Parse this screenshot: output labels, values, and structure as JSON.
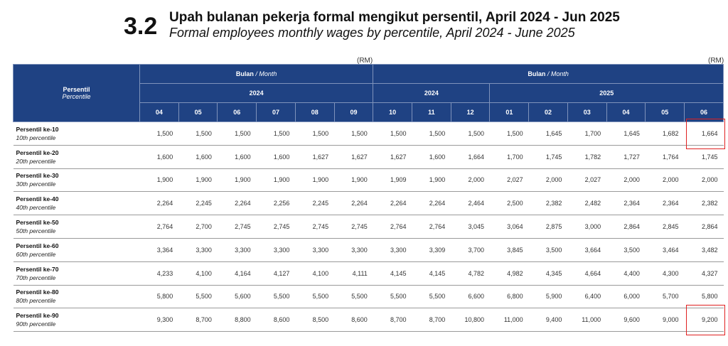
{
  "title": {
    "number": "3.2",
    "ms": "Upah bulanan pekerja formal mengikut persentil, April 2024 - Jun 2025",
    "en": "Formal employees monthly wages by percentile, April 2024 - June 2025"
  },
  "unit": "(RM)",
  "header": {
    "row_label_ms": "Persentil",
    "row_label_en": "Percentile",
    "group_ms": "Bulan",
    "group_sep": " / ",
    "group_en": "Month",
    "left_year": "2024",
    "right_years": [
      "2024",
      "2025"
    ],
    "left_months": [
      "04",
      "05",
      "06",
      "07",
      "08",
      "09"
    ],
    "right_months": [
      "10",
      "11",
      "12",
      "01",
      "02",
      "03",
      "04",
      "05",
      "06"
    ]
  },
  "highlight_color": "#e02020",
  "rows": [
    {
      "ms": "Persentil ke-10",
      "en": "10th percentile",
      "values": [
        "1,500",
        "1,500",
        "1,500",
        "1,500",
        "1,500",
        "1,500",
        "1,500",
        "1,500",
        "1,500",
        "1,500",
        "1,645",
        "1,700",
        "1,645",
        "1,682",
        "1,664"
      ],
      "highlight_last": true
    },
    {
      "ms": "Persentil ke-20",
      "en": "20th percentile",
      "values": [
        "1,600",
        "1,600",
        "1,600",
        "1,600",
        "1,627",
        "1,627",
        "1,627",
        "1,600",
        "1,664",
        "1,700",
        "1,745",
        "1,782",
        "1,727",
        "1,764",
        "1,745"
      ]
    },
    {
      "ms": "Persentil ke-30",
      "en": "30th percentile",
      "values": [
        "1,900",
        "1,900",
        "1,900",
        "1,900",
        "1,900",
        "1,900",
        "1,909",
        "1,900",
        "2,000",
        "2,027",
        "2,000",
        "2,027",
        "2,000",
        "2,000",
        "2,000"
      ]
    },
    {
      "ms": "Persentil ke-40",
      "en": "40th percentile",
      "values": [
        "2,264",
        "2,245",
        "2,264",
        "2,256",
        "2,245",
        "2,264",
        "2,264",
        "2,264",
        "2,464",
        "2,500",
        "2,382",
        "2,482",
        "2,364",
        "2,364",
        "2,382"
      ]
    },
    {
      "ms": "Persentil ke-50",
      "en": "50th percentile",
      "values": [
        "2,764",
        "2,700",
        "2,745",
        "2,745",
        "2,745",
        "2,745",
        "2,764",
        "2,764",
        "3,045",
        "3,064",
        "2,875",
        "3,000",
        "2,864",
        "2,845",
        "2,864"
      ]
    },
    {
      "ms": "Persentil ke-60",
      "en": "60th percentile",
      "values": [
        "3,364",
        "3,300",
        "3,300",
        "3,300",
        "3,300",
        "3,300",
        "3,300",
        "3,309",
        "3,700",
        "3,845",
        "3,500",
        "3,664",
        "3,500",
        "3,464",
        "3,482"
      ]
    },
    {
      "ms": "Persentil ke-70",
      "en": "70th percentile",
      "values": [
        "4,233",
        "4,100",
        "4,164",
        "4,127",
        "4,100",
        "4,111",
        "4,145",
        "4,145",
        "4,782",
        "4,982",
        "4,345",
        "4,664",
        "4,400",
        "4,300",
        "4,327"
      ]
    },
    {
      "ms": "Persentil ke-80",
      "en": "80th percentile",
      "values": [
        "5,800",
        "5,500",
        "5,600",
        "5,500",
        "5,500",
        "5,500",
        "5,500",
        "5,500",
        "6,600",
        "6,800",
        "5,900",
        "6,400",
        "6,000",
        "5,700",
        "5,800"
      ]
    },
    {
      "ms": "Persentil ke-90",
      "en": "90th percentile",
      "values": [
        "9,300",
        "8,700",
        "8,800",
        "8,600",
        "8,500",
        "8,600",
        "8,700",
        "8,700",
        "10,800",
        "11,000",
        "9,400",
        "11,000",
        "9,600",
        "9,000",
        "9,200"
      ],
      "highlight_last": true
    }
  ]
}
